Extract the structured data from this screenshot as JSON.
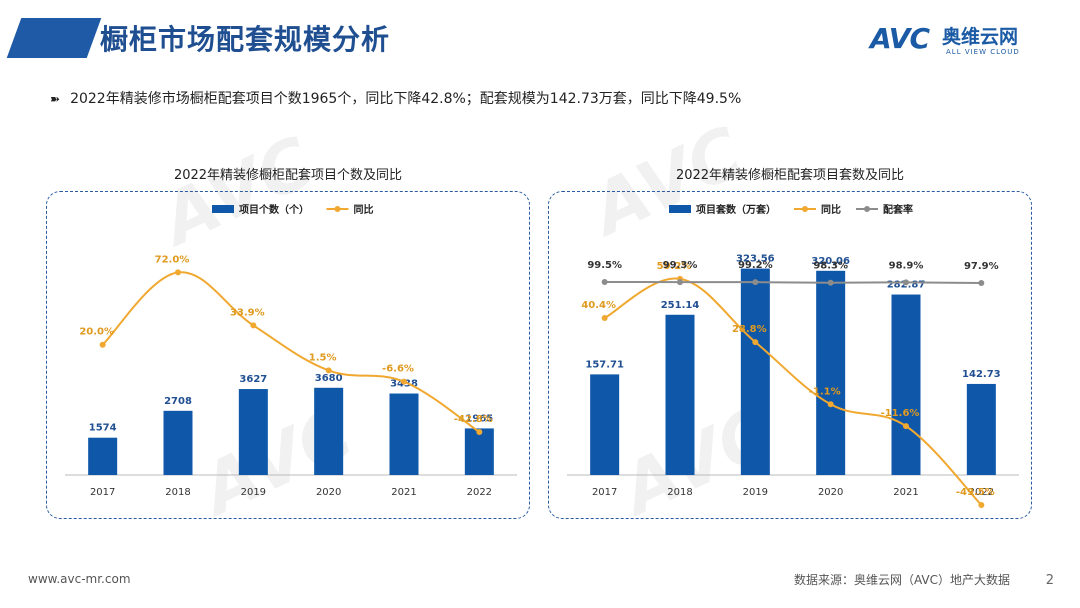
{
  "header": {
    "title": "橱柜市场配套规模分析"
  },
  "logo": {
    "brand": "AVC",
    "cn": "奥维云网",
    "en": "ALL VIEW CLOUD"
  },
  "bullet": "2022年精装修市场橱柜配套项目个数1965个，同比下降42.8%；配套规模为142.73万套，同比下降49.5%",
  "footer": {
    "website": "www.avc-mr.com",
    "source": "数据来源：奥维云网（AVC）地产大数据",
    "page": "2"
  },
  "colors": {
    "bar": "#0f57a8",
    "yoy": "#f0a830",
    "rate": "#8c8c8c",
    "title": "#1f4f91"
  },
  "chart_data": [
    {
      "type": "bar",
      "title": "2022年精装修橱柜配套项目个数及同比",
      "categories": [
        "2017",
        "2018",
        "2019",
        "2020",
        "2021",
        "2022"
      ],
      "series": [
        {
          "name": "项目个数（个）",
          "type": "bar",
          "values": [
            1574,
            2708,
            3627,
            3680,
            3438,
            1965
          ],
          "labels": [
            "1574",
            "2708",
            "3627",
            "3680",
            "3438",
            "1965"
          ]
        },
        {
          "name": "同比",
          "type": "line",
          "values": [
            20.0,
            72.0,
            33.9,
            1.5,
            -6.6,
            -42.8
          ],
          "labels": [
            "20.0%",
            "72.0%",
            "33.9%",
            "1.5%",
            "-6.6%",
            "-42.8%"
          ]
        }
      ]
    },
    {
      "type": "bar",
      "title": "2022年精装修橱柜配套项目套数及同比",
      "categories": [
        "2017",
        "2018",
        "2019",
        "2020",
        "2021",
        "2022"
      ],
      "series": [
        {
          "name": "项目套数（万套）",
          "type": "bar",
          "values": [
            157.71,
            251.14,
            323.56,
            320.06,
            282.87,
            142.73
          ],
          "labels": [
            "157.71",
            "251.14",
            "323.56",
            "320.06",
            "282.87",
            "142.73"
          ]
        },
        {
          "name": "同比",
          "type": "line",
          "values": [
            40.4,
            59.2,
            28.8,
            -1.1,
            -11.6,
            -49.5
          ],
          "labels": [
            "40.4%",
            "59.2%",
            "28.8%",
            "-1.1%",
            "-11.6%",
            "-49.5%"
          ]
        },
        {
          "name": "配套率",
          "type": "line",
          "values": [
            99.5,
            99.3,
            99.2,
            98.3,
            98.9,
            97.9
          ],
          "labels": [
            "99.5%",
            "99.3%",
            "99.2%",
            "98.3%",
            "98.9%",
            "97.9%"
          ]
        }
      ]
    }
  ]
}
